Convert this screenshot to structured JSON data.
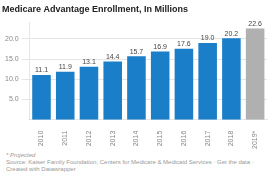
{
  "chart_data": {
    "type": "bar",
    "title": "Medicare Advantage Enrollment, In Millions",
    "categories": [
      "2010",
      "2011",
      "2012",
      "2013",
      "2014",
      "2015",
      "2016",
      "2017",
      "2018",
      "2019*"
    ],
    "values": [
      11.1,
      11.9,
      13.1,
      14.4,
      15.7,
      16.9,
      17.6,
      19.0,
      20.2,
      22.6
    ],
    "value_labels": [
      "11.1",
      "11.9",
      "13.1",
      "14.4",
      "15.7",
      "16.9",
      "17.6",
      "19.0",
      "20.2",
      "22.6"
    ],
    "colors": [
      "#1a7ec8",
      "#1a7ec8",
      "#1a7ec8",
      "#1a7ec8",
      "#1a7ec8",
      "#1a7ec8",
      "#1a7ec8",
      "#1a7ec8",
      "#1a7ec8",
      "#b0b0b0"
    ],
    "ylim": [
      0,
      24
    ],
    "yticks": [
      {
        "value": 5.0,
        "label": "5.0"
      },
      {
        "value": 10.0,
        "label": "10.0"
      },
      {
        "value": 15.0,
        "label": "15.0"
      },
      {
        "value": 20.0,
        "label": "20.0"
      }
    ],
    "grid": true,
    "data_labels": true,
    "annotations": [
      "* Projected",
      "Source: Kaiser Family Foundation; Centers for Medicare & Medicaid Services · Get the data · Created with Datawrapper"
    ]
  }
}
